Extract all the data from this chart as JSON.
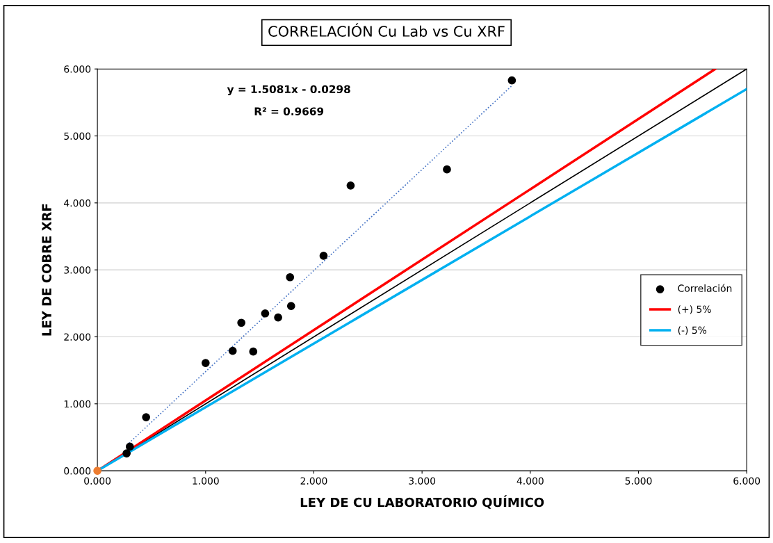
{
  "chart_data": {
    "type": "scatter",
    "title": "CORRELACIÓN Cu Lab vs Cu XRF",
    "xlabel": "LEY DE CU LABORATORIO QUÍMICO",
    "ylabel": "LEY DE COBRE XRF",
    "annotations": [
      "y = 1.5081x - 0.0298",
      "R² = 0.9669"
    ],
    "xlim": [
      0,
      6
    ],
    "ylim": [
      0,
      6
    ],
    "xticks": [
      {
        "value": 0,
        "label": "0.000"
      },
      {
        "value": 1,
        "label": "1.000"
      },
      {
        "value": 2,
        "label": "2.000"
      },
      {
        "value": 3,
        "label": "3.000"
      },
      {
        "value": 4,
        "label": "4.000"
      },
      {
        "value": 5,
        "label": "5.000"
      },
      {
        "value": 6,
        "label": "6.000"
      }
    ],
    "yticks": [
      {
        "value": 0,
        "label": "0.000"
      },
      {
        "value": 1,
        "label": "1.000"
      },
      {
        "value": 2,
        "label": "2.000"
      },
      {
        "value": 3,
        "label": "3.000"
      },
      {
        "value": 4,
        "label": "4.000"
      },
      {
        "value": 5,
        "label": "5.000"
      },
      {
        "value": 6,
        "label": "6.000"
      }
    ],
    "grid": "y",
    "legend": "right",
    "series": [
      {
        "name": "Correlación",
        "marker": "circle",
        "color": "#000000",
        "x": [
          0.27,
          0.3,
          0.45,
          1.0,
          1.25,
          1.33,
          1.44,
          1.55,
          1.67,
          1.78,
          1.79,
          2.09,
          2.34,
          3.23,
          3.83
        ],
        "values": [
          0.26,
          0.36,
          0.8,
          1.61,
          1.79,
          2.21,
          1.78,
          2.35,
          2.29,
          2.89,
          2.46,
          3.21,
          4.26,
          4.5,
          5.83
        ]
      },
      {
        "type": "line",
        "line_style": "dotted",
        "color": "#4472c4",
        "x": [
          0.27,
          3.83
        ],
        "values": [
          0.38,
          5.75
        ]
      },
      {
        "type": "line",
        "line_style": "solid",
        "color": "#000000",
        "x": [
          0,
          6
        ],
        "values": [
          0,
          6
        ]
      },
      {
        "name": "(+) 5%",
        "type": "line",
        "line_style": "solid",
        "color": "#ff0000",
        "x": [
          0,
          5.71
        ],
        "values": [
          0,
          6
        ]
      },
      {
        "name": "(-) 5%",
        "type": "line",
        "line_style": "solid",
        "color": "#00b0f0",
        "x": [
          0,
          6
        ],
        "values": [
          0,
          5.7
        ]
      },
      {
        "marker": "circle",
        "color": "#ed7d31",
        "x": [
          0
        ],
        "values": [
          0
        ]
      }
    ]
  }
}
